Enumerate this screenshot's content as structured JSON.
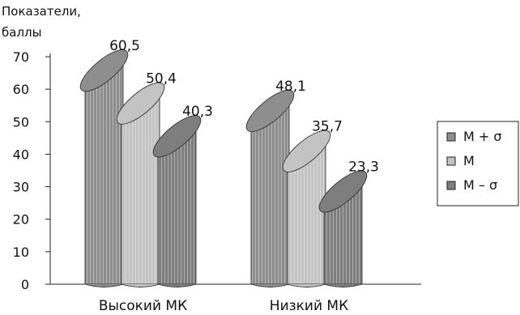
{
  "chart_data": {
    "type": "bar",
    "ylabel": "Показатели, баллы",
    "ylabel_lines": [
      "Показатели,",
      "баллы"
    ],
    "categories": [
      "Высокий МК",
      "Низкий МК"
    ],
    "series": [
      {
        "name": "M + σ",
        "values": [
          60.5,
          48.1
        ],
        "labels": [
          "60,5",
          "48,1"
        ],
        "color": "#8e8e8e"
      },
      {
        "name": "M",
        "values": [
          50.4,
          35.7
        ],
        "labels": [
          "50,4",
          "35,7"
        ],
        "color": "#c3c3c3"
      },
      {
        "name": "M – σ",
        "values": [
          40.3,
          23.3
        ],
        "labels": [
          "40,3",
          "23,3"
        ],
        "color": "#7e7e7e"
      }
    ],
    "ylim": [
      0,
      70
    ],
    "yticks": [
      0,
      10,
      20,
      30,
      40,
      50,
      60,
      70
    ],
    "legend_position": "right",
    "grid": false,
    "style": "3d-cylinder"
  }
}
